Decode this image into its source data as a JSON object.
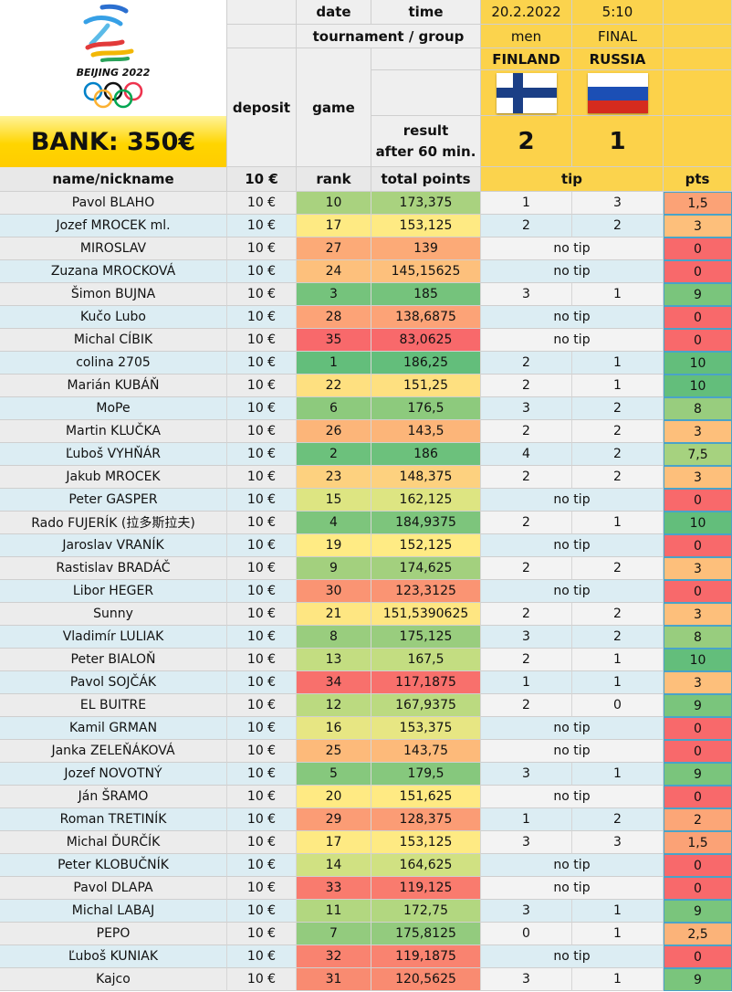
{
  "header": {
    "date_label": "date",
    "time_label": "time",
    "date_value": "20.2.2022",
    "time_value": "5:10",
    "tournament_label": "tournament / group",
    "tournament_value": "men",
    "group_value": "FINAL",
    "deposit_label": "deposit",
    "game_label": "game",
    "result_label_1": "result",
    "result_label_2": "after 60 min.",
    "team1": "FINLAND",
    "team2": "RUSSIA",
    "score1": "2",
    "score2": "1",
    "bank": "BANK: 350€",
    "logo_text": "BEIJING 2022"
  },
  "columns": {
    "name": "name/nickname",
    "deposit": "10 €",
    "rank": "rank",
    "total": "total points",
    "tip": "tip",
    "pts": "pts"
  },
  "colors": {
    "green": "#63be7b",
    "yellow": "#ffeb84",
    "red": "#f8696b"
  },
  "rows": [
    {
      "name": "Pavol BLAHO",
      "dep": "10 €",
      "rank": "10",
      "total": "173,375",
      "tip1": "1",
      "tip2": "3",
      "pts": "1,5",
      "rc": "#a9d27f",
      "pc": "#fba276"
    },
    {
      "name": "Jozef MROCEK ml.",
      "dep": "10 €",
      "rank": "17",
      "total": "153,125",
      "tip1": "2",
      "tip2": "2",
      "pts": "3",
      "rc": "#feea83",
      "pc": "#fdbf7b"
    },
    {
      "name": "MIROSLAV",
      "dep": "10 €",
      "rank": "27",
      "total": "139",
      "notip": "no tip",
      "pts": "0",
      "rc": "#fcaa77",
      "pc": "#f8696b"
    },
    {
      "name": "Zuzana MROCKOVÁ",
      "dep": "10 €",
      "rank": "24",
      "total": "145,15625",
      "notip": "no tip",
      "pts": "0",
      "rc": "#fdc07c",
      "pc": "#f8696b"
    },
    {
      "name": "Šimon BUJNA",
      "dep": "10 €",
      "rank": "3",
      "total": "185",
      "tip1": "3",
      "tip2": "1",
      "pts": "9",
      "rc": "#75c37c",
      "pc": "#7ac57c"
    },
    {
      "name": "Kučo Lubo",
      "dep": "10 €",
      "rank": "28",
      "total": "138,6875",
      "notip": "no tip",
      "pts": "0",
      "rc": "#fca377",
      "pc": "#f8696b"
    },
    {
      "name": "Michal CÍBIK",
      "dep": "10 €",
      "rank": "35",
      "total": "83,0625",
      "notip": "no tip",
      "pts": "0",
      "rc": "#f8696b",
      "pc": "#f8696b"
    },
    {
      "name": "colina 2705",
      "dep": "10 €",
      "rank": "1",
      "total": "186,25",
      "tip1": "2",
      "tip2": "1",
      "pts": "10",
      "rc": "#63be7b",
      "pc": "#63be7b"
    },
    {
      "name": "Marián KUBÁŇ",
      "dep": "10 €",
      "rank": "22",
      "total": "151,25",
      "tip1": "2",
      "tip2": "1",
      "pts": "10",
      "rc": "#fee080",
      "pc": "#63be7b"
    },
    {
      "name": "MoPe",
      "dep": "10 €",
      "rank": "6",
      "total": "176,5",
      "tip1": "3",
      "tip2": "2",
      "pts": "8",
      "rc": "#8dca7d",
      "pc": "#98cd7e"
    },
    {
      "name": "Martin KLUČKA",
      "dep": "10 €",
      "rank": "26",
      "total": "143,5",
      "tip1": "2",
      "tip2": "2",
      "pts": "3",
      "rc": "#fcb579",
      "pc": "#fdbf7b"
    },
    {
      "name": "Ľuboš VYHŇÁR",
      "dep": "10 €",
      "rank": "2",
      "total": "186",
      "tip1": "4",
      "tip2": "2",
      "pts": "7,5",
      "rc": "#6cc17c",
      "pc": "#a6d27f"
    },
    {
      "name": "Jakub MROCEK",
      "dep": "10 €",
      "rank": "23",
      "total": "148,375",
      "tip1": "2",
      "tip2": "2",
      "pts": "3",
      "rc": "#fdd17f",
      "pc": "#fdbf7b"
    },
    {
      "name": "Peter GASPER",
      "dep": "10 €",
      "rank": "15",
      "total": "162,125",
      "notip": "no tip",
      "pts": "0",
      "rc": "#dde582",
      "pc": "#f8696b"
    },
    {
      "name": "Rado FUJERÍK (拉多斯拉夫)",
      "dep": "10 €",
      "rank": "4",
      "total": "184,9375",
      "tip1": "2",
      "tip2": "1",
      "pts": "10",
      "rc": "#7dc57c",
      "pc": "#63be7b"
    },
    {
      "name": "Jaroslav VRANÍK",
      "dep": "10 €",
      "rank": "19",
      "total": "152,125",
      "notip": "no tip",
      "pts": "0",
      "rc": "#ffeb84",
      "pc": "#f8696b"
    },
    {
      "name": "Rastislav BRADÁČ",
      "dep": "10 €",
      "rank": "9",
      "total": "174,625",
      "tip1": "2",
      "tip2": "2",
      "pts": "3",
      "rc": "#a3d07e",
      "pc": "#fdbf7b"
    },
    {
      "name": "Libor HEGER",
      "dep": "10 €",
      "rank": "30",
      "total": "123,3125",
      "notip": "no tip",
      "pts": "0",
      "rc": "#fa9473",
      "pc": "#f8696b"
    },
    {
      "name": "Sunny",
      "dep": "10 €",
      "rank": "21",
      "total": "151,5390625",
      "tip1": "2",
      "tip2": "2",
      "pts": "3",
      "rc": "#fee682",
      "pc": "#fdbf7b"
    },
    {
      "name": "Vladimír LULIAK",
      "dep": "10 €",
      "rank": "8",
      "total": "175,125",
      "tip1": "3",
      "tip2": "2",
      "pts": "8",
      "rc": "#99cd7e",
      "pc": "#98cd7e"
    },
    {
      "name": "Peter BIALOŇ",
      "dep": "10 €",
      "rank": "13",
      "total": "167,5",
      "tip1": "2",
      "tip2": "1",
      "pts": "10",
      "rc": "#c3dd81",
      "pc": "#63be7b"
    },
    {
      "name": "Pavol SOJČÁK",
      "dep": "10 €",
      "rank": "34",
      "total": "117,1875",
      "tip1": "1",
      "tip2": "1",
      "pts": "3",
      "rc": "#f8706c",
      "pc": "#fdbf7b"
    },
    {
      "name": "EL BUITRE",
      "dep": "10 €",
      "rank": "12",
      "total": "167,9375",
      "tip1": "2",
      "tip2": "0",
      "pts": "9",
      "rc": "#bbda80",
      "pc": "#7ac57c"
    },
    {
      "name": "Kamil GRMAN",
      "dep": "10 €",
      "rank": "16",
      "total": "153,375",
      "notip": "no tip",
      "pts": "0",
      "rc": "#e7e683",
      "pc": "#f8696b"
    },
    {
      "name": "Janka ZELEŇÁKOVÁ",
      "dep": "10 €",
      "rank": "25",
      "total": "143,75",
      "notip": "no tip",
      "pts": "0",
      "rc": "#fdba7a",
      "pc": "#f8696b"
    },
    {
      "name": "Jozef NOVOTNÝ",
      "dep": "10 €",
      "rank": "5",
      "total": "179,5",
      "tip1": "3",
      "tip2": "1",
      "pts": "9",
      "rc": "#86c87d",
      "pc": "#7ac57c"
    },
    {
      "name": "Ján ŠRAMO",
      "dep": "10 €",
      "rank": "20",
      "total": "151,625",
      "notip": "no tip",
      "pts": "0",
      "rc": "#ffea83",
      "pc": "#f8696b"
    },
    {
      "name": "Roman TRETINÍK",
      "dep": "10 €",
      "rank": "29",
      "total": "128,375",
      "tip1": "1",
      "tip2": "2",
      "pts": "2",
      "rc": "#fb9c75",
      "pc": "#fca677"
    },
    {
      "name": "Michal ĎURČÍK",
      "dep": "10 €",
      "rank": "17",
      "total": "153,125",
      "tip1": "3",
      "tip2": "3",
      "pts": "1,5",
      "rc": "#feea83",
      "pc": "#fba276"
    },
    {
      "name": "Peter KLOBUČNÍK",
      "dep": "10 €",
      "rank": "14",
      "total": "164,625",
      "notip": "no tip",
      "pts": "0",
      "rc": "#d0e182",
      "pc": "#f8696b"
    },
    {
      "name": "Pavol DLAPA",
      "dep": "10 €",
      "rank": "33",
      "total": "119,125",
      "notip": "no tip",
      "pts": "0",
      "rc": "#f97b6e",
      "pc": "#f8696b"
    },
    {
      "name": "Michal LABAJ",
      "dep": "10 €",
      "rank": "11",
      "total": "172,75",
      "tip1": "3",
      "tip2": "1",
      "pts": "9",
      "rc": "#b2d780",
      "pc": "#7ac57c"
    },
    {
      "name": "PEPO",
      "dep": "10 €",
      "rank": "7",
      "total": "175,8125",
      "tip1": "0",
      "tip2": "1",
      "pts": "2,5",
      "rc": "#93cb7e",
      "pc": "#fbb379"
    },
    {
      "name": "Ľuboš KUNIAK",
      "dep": "10 €",
      "rank": "32",
      "total": "119,1875",
      "notip": "no tip",
      "pts": "0",
      "rc": "#f98370",
      "pc": "#f8696b"
    },
    {
      "name": "Kajco",
      "dep": "10 €",
      "rank": "31",
      "total": "120,5625",
      "tip1": "3",
      "tip2": "1",
      "pts": "9",
      "rc": "#f98b71",
      "pc": "#7ac57c"
    }
  ]
}
